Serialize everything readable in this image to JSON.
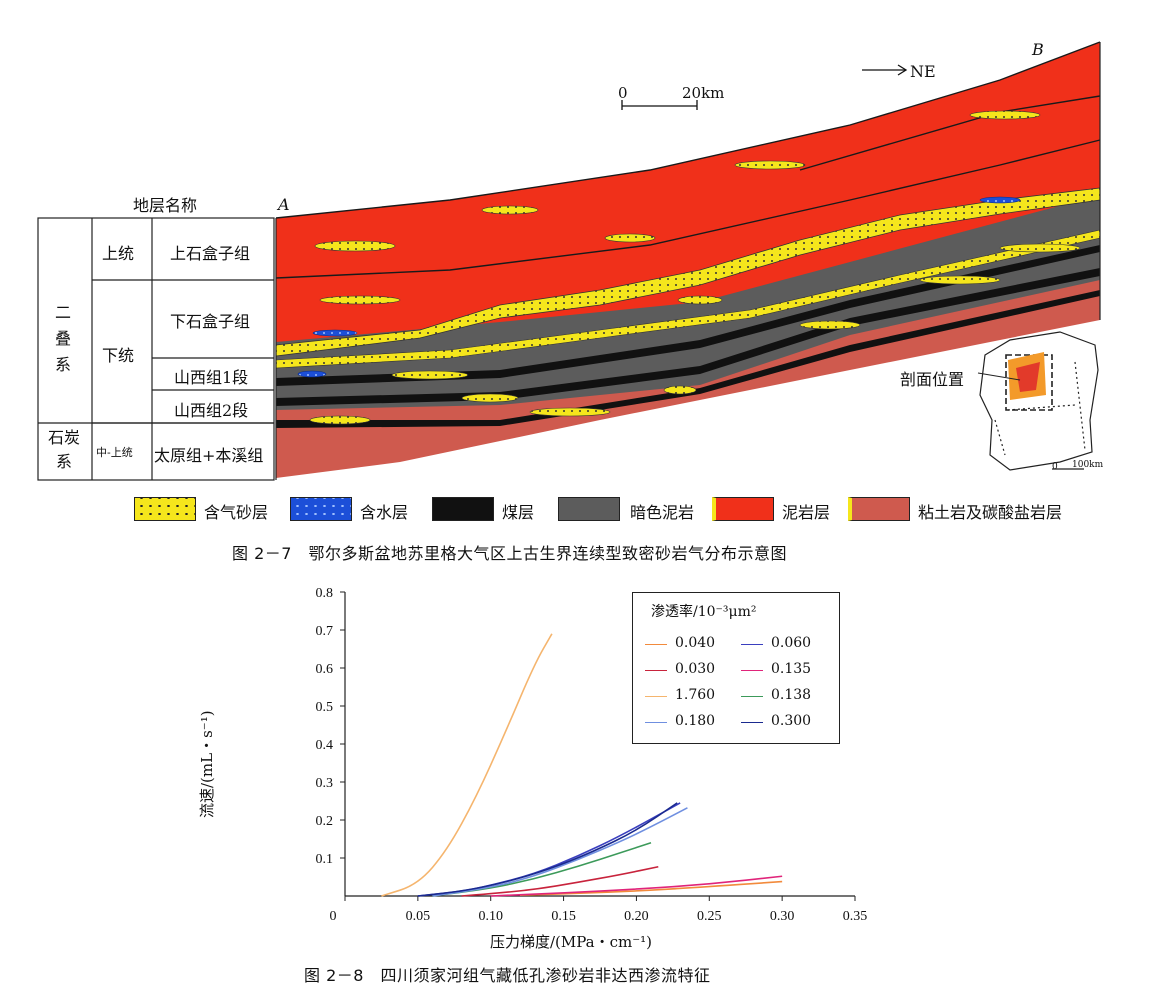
{
  "figure7": {
    "caption": "图 2－7　鄂尔多斯盆地苏里格大气区上古生界连续型致密砂岩气分布示意图",
    "stratigraphy": {
      "header": "地层名称",
      "systems": [
        "二叠系",
        "石炭系"
      ],
      "series": [
        "上统",
        "下统",
        "中-上统"
      ],
      "formations": [
        "上石盒子组",
        "下石盒子组",
        "山西组1段",
        "山西组2段",
        "太原组+本溪组"
      ]
    },
    "section": {
      "point_a": "A",
      "point_b": "B",
      "direction": "NE",
      "scale_start": "0",
      "scale_end": "20km",
      "inset_label": "剖面位置",
      "inset_scale_start": "0",
      "inset_scale_end": "100km"
    },
    "legend": [
      {
        "label": "含气砂层",
        "color": "#f5e61c"
      },
      {
        "label": "含水层",
        "color": "#1c4fd8"
      },
      {
        "label": "煤层",
        "color": "#111111"
      },
      {
        "label": "暗色泥岩",
        "color": "#5c5c5c"
      },
      {
        "label": "泥岩层",
        "color": "#f0301a"
      },
      {
        "label": "粘土岩及碳酸盐岩层",
        "color": "#cf5a4e"
      }
    ]
  },
  "figure8": {
    "caption": "图 2－8　四川须家河组气藏低孔渗砂岩非达西渗流特征"
  },
  "chart_data": {
    "type": "line",
    "title": "",
    "xlabel": "压力梯度/(MPa・cm⁻¹)",
    "ylabel": "流速/(mL・s⁻¹)",
    "xlim": [
      0,
      0.35
    ],
    "ylim": [
      0,
      0.8
    ],
    "xticks": [
      "0",
      "0.05",
      "0.10",
      "0.15",
      "0.20",
      "0.25",
      "0.30",
      "0.35"
    ],
    "yticks": [
      "0.1",
      "0.2",
      "0.3",
      "0.4",
      "0.5",
      "0.6",
      "0.7",
      "0.8"
    ],
    "legend_title": "渗透率/10⁻³μm²",
    "legend_position": "top-right",
    "series": [
      {
        "name": "0.040",
        "color": "#f28a3c",
        "x": [
          0.12,
          0.16,
          0.2,
          0.24,
          0.3
        ],
        "y": [
          0.002,
          0.007,
          0.013,
          0.022,
          0.038
        ]
      },
      {
        "name": "0.060",
        "color": "#3a3fbf",
        "x": [
          0.05,
          0.08,
          0.1,
          0.13,
          0.16,
          0.19,
          0.23
        ],
        "y": [
          0.0,
          0.012,
          0.028,
          0.058,
          0.105,
          0.16,
          0.245
        ]
      },
      {
        "name": "0.030",
        "color": "#c8233c",
        "x": [
          0.08,
          0.1,
          0.13,
          0.16,
          0.19,
          0.215
        ],
        "y": [
          0.0,
          0.006,
          0.017,
          0.036,
          0.057,
          0.077
        ]
      },
      {
        "name": "0.135",
        "color": "#e0247a",
        "x": [
          0.1,
          0.15,
          0.2,
          0.25,
          0.3
        ],
        "y": [
          0.0,
          0.008,
          0.018,
          0.031,
          0.052
        ]
      },
      {
        "name": "1.760",
        "color": "#f5b56e",
        "x": [
          0.025,
          0.05,
          0.07,
          0.09,
          0.11,
          0.13,
          0.142
        ],
        "y": [
          0.0,
          0.03,
          0.12,
          0.26,
          0.43,
          0.61,
          0.69
        ]
      },
      {
        "name": "0.138",
        "color": "#3c9a5a",
        "x": [
          0.06,
          0.1,
          0.13,
          0.16,
          0.19,
          0.21
        ],
        "y": [
          0.0,
          0.02,
          0.045,
          0.078,
          0.115,
          0.14
        ]
      },
      {
        "name": "0.180",
        "color": "#6f8fe0",
        "x": [
          0.06,
          0.1,
          0.13,
          0.16,
          0.19,
          0.21,
          0.235
        ],
        "y": [
          0.0,
          0.022,
          0.052,
          0.096,
          0.145,
          0.182,
          0.232
        ]
      },
      {
        "name": "0.300",
        "color": "#1a2a8f",
        "x": [
          0.05,
          0.08,
          0.11,
          0.14,
          0.17,
          0.2,
          0.228
        ],
        "y": [
          0.0,
          0.012,
          0.036,
          0.07,
          0.116,
          0.172,
          0.245
        ]
      }
    ]
  }
}
